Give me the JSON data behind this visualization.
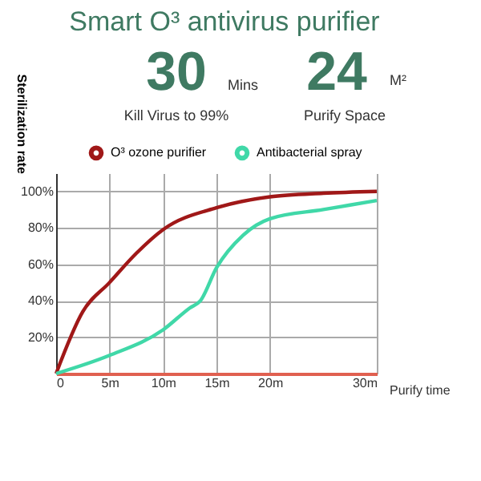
{
  "chart_data": {
    "type": "line",
    "title": "Smart O³ antivirus purifier",
    "annotations": [
      "30",
      "Mins",
      "Kill Virus to 99%",
      "24",
      "M²",
      "Purify Space"
    ],
    "xlabel": "Purify time",
    "ylabel": "Sterilization rate",
    "series": [
      {
        "name": "O³ ozone purifier",
        "color": "#a01818",
        "x": [
          0,
          2.5,
          5,
          7.5,
          10,
          15,
          20,
          25,
          30
        ],
        "values": [
          0,
          34,
          50,
          66,
          79,
          91,
          97,
          99,
          100
        ]
      },
      {
        "name": "Antibacterial spray",
        "color": "#40d8a8",
        "x": [
          0,
          5,
          10,
          12.5,
          13.5,
          15,
          17.5,
          20,
          25,
          30
        ],
        "values": [
          0,
          10,
          24,
          36,
          40,
          58,
          76,
          85,
          90,
          95
        ]
      }
    ],
    "xlim": [
      0,
      30
    ],
    "xticks": [
      {
        "value": 0,
        "label": "0"
      },
      {
        "value": 5,
        "label": "5m"
      },
      {
        "value": 10,
        "label": "10m"
      },
      {
        "value": 15,
        "label": "15m"
      },
      {
        "value": 20,
        "label": "20m"
      },
      {
        "value": 30,
        "label": "30m"
      }
    ],
    "ylim": [
      0,
      110
    ],
    "yticks": [
      {
        "value": 20,
        "label": "20%"
      },
      {
        "value": 40,
        "label": "40%"
      },
      {
        "value": 60,
        "label": "60%"
      },
      {
        "value": 80,
        "label": "80%"
      },
      {
        "value": 100,
        "label": "100%"
      }
    ],
    "grid": true,
    "legend": "top",
    "marker": "none",
    "line_style": "solid"
  }
}
